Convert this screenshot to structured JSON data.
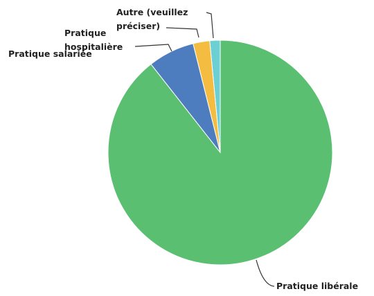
{
  "chart_data": {
    "type": "pie",
    "categories": [
      "Pratique libérale",
      "Pratique salariée",
      "Pratique hospitalière",
      "Autre (veuillez préciser)"
    ],
    "values": [
      89.4,
      6.7,
      2.4,
      1.5
    ],
    "colors": [
      "#5bbf72",
      "#4e7dbf",
      "#f4bd41",
      "#6ccfd3"
    ]
  }
}
